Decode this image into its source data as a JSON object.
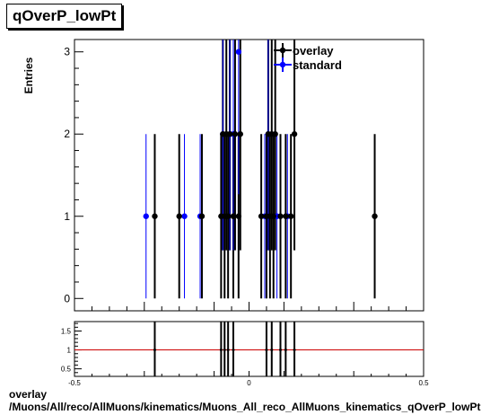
{
  "title": "qOverP_lowPt",
  "footer": {
    "line1": "overlay",
    "line2": "/Muons/All/reco/AllMuons/kinematics/Muons_All_reco_AllMuons_kinematics_qOverP_lowPt"
  },
  "colors": {
    "overlay": "#000000",
    "standard": "#0000ff",
    "ratio_line": "#cc0000"
  },
  "chart_data": [
    {
      "type": "scatter",
      "ylabel": "Entries",
      "xlabel": "",
      "xlim": [
        -0.5,
        0.5
      ],
      "ylim": [
        -0.15,
        3.15
      ],
      "y_ticks": [
        0,
        1,
        2,
        3
      ],
      "x_ticks": [
        -0.5,
        0,
        0.5
      ],
      "legend": {
        "placement": "top-right",
        "entries": [
          "overlay",
          "standard"
        ]
      },
      "grid": false,
      "series": [
        {
          "name": "overlay",
          "points": [
            [
              -0.27,
              1
            ],
            [
              -0.2,
              1
            ],
            [
              -0.135,
              1
            ],
            [
              -0.08,
              1
            ],
            [
              -0.075,
              2
            ],
            [
              -0.07,
              1
            ],
            [
              -0.065,
              2
            ],
            [
              -0.06,
              1
            ],
            [
              -0.055,
              2
            ],
            [
              -0.045,
              1
            ],
            [
              -0.04,
              2
            ],
            [
              -0.03,
              1
            ],
            [
              -0.025,
              2
            ],
            [
              0.035,
              1
            ],
            [
              0.05,
              1
            ],
            [
              0.055,
              2
            ],
            [
              0.06,
              1
            ],
            [
              0.065,
              2
            ],
            [
              0.07,
              1
            ],
            [
              0.075,
              2
            ],
            [
              0.09,
              1
            ],
            [
              0.105,
              1
            ],
            [
              0.12,
              1
            ],
            [
              0.13,
              2
            ],
            [
              0.36,
              1
            ]
          ]
        },
        {
          "name": "standard",
          "points": [
            [
              -0.295,
              1
            ],
            [
              -0.185,
              1
            ],
            [
              -0.14,
              1
            ],
            [
              -0.075,
              2
            ],
            [
              -0.055,
              2
            ],
            [
              -0.045,
              2
            ],
            [
              -0.03,
              3
            ],
            [
              0.045,
              1
            ],
            [
              0.055,
              2
            ],
            [
              0.08,
              1
            ],
            [
              0.11,
              1
            ]
          ]
        }
      ]
    },
    {
      "type": "scatter",
      "name": "ratio",
      "xlim": [
        -0.5,
        0.5
      ],
      "ylim": [
        0.3,
        1.75
      ],
      "y_ticks": [
        0.5,
        1,
        1.5
      ],
      "x_ticks": [
        -0.5,
        0,
        0.5
      ],
      "reference_line": 1,
      "x_tick_labels": [
        "-0.5",
        "0",
        "0.5"
      ],
      "y_tick_labels": [
        "0.5",
        "1",
        "1.5"
      ],
      "series": [
        {
          "name": "ratio",
          "x": [
            -0.27,
            -0.08,
            -0.07,
            -0.06,
            -0.045,
            0.05,
            0.065,
            0.09,
            0.105,
            0.13
          ],
          "y": [
            1,
            1,
            1,
            1,
            1,
            1,
            1,
            1,
            1,
            1
          ]
        }
      ]
    }
  ]
}
